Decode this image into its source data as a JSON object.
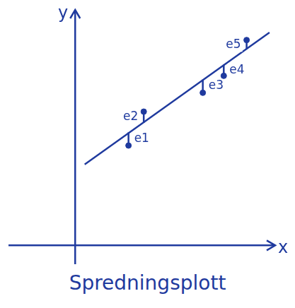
{
  "chart_data": {
    "type": "scatter",
    "caption": "Spredningsplott",
    "x_label": "x",
    "y_label": "y",
    "xlim": [
      -3.5,
      10.5
    ],
    "ylim": [
      -1,
      12.5
    ],
    "tick_labels": false,
    "grid": false,
    "color": "#1f3a9e",
    "line": {
      "x": [
        0.5,
        10.2
      ],
      "y": [
        4.3,
        11.3
      ]
    },
    "points": [
      {
        "label": "e1",
        "x": 2.8,
        "y": 5.3,
        "fitted": 6.0
      },
      {
        "label": "e2",
        "x": 3.6,
        "y": 7.1,
        "fitted": 6.5
      },
      {
        "label": "e3",
        "x": 6.7,
        "y": 8.1,
        "fitted": 8.8
      },
      {
        "label": "e4",
        "x": 7.8,
        "y": 9.0,
        "fitted": 9.6
      },
      {
        "label": "e5",
        "x": 9.0,
        "y": 10.9,
        "fitted": 10.4
      }
    ]
  }
}
